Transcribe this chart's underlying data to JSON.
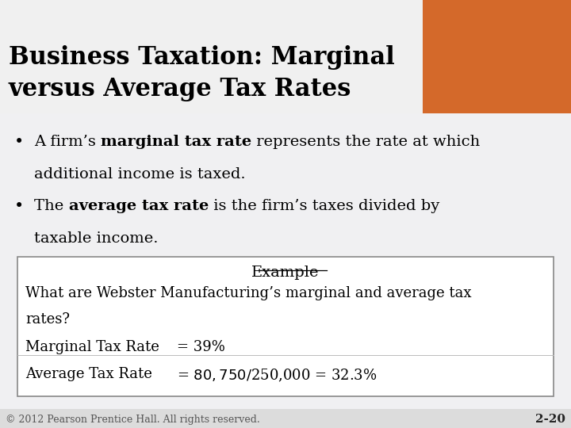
{
  "title_line1": "Business Taxation: Marginal",
  "title_line2": "versus Average Tax Rates",
  "header_bg": "#D4692A",
  "header_text_color": "#000000",
  "slide_bg": "#DCDCDC",
  "body_bg": "#F0F0F2",
  "bullet1_normal": "A firm’s ",
  "bullet1_bold": "marginal tax rate",
  "bullet1_rest": " represents the rate at which",
  "bullet1_line2": "additional income is taxed.",
  "bullet2_normal": "The ",
  "bullet2_bold": "average tax rate",
  "bullet2_rest": " is the firm’s taxes divided by",
  "bullet2_line2": "taxable income.",
  "example_title": "Example",
  "q_line1": "What are Webster Manufacturing’s marginal and average tax",
  "q_line2": "rates?",
  "marginal_label": "Marginal Tax Rate",
  "marginal_value": "= 39%",
  "average_label": "Average Tax Rate",
  "average_value": "= $80,750/$250,000 = 32.3%",
  "footer_left": "© 2012 Pearson Prentice Hall. All rights reserved.",
  "footer_right": "2-20",
  "box_border": "#888888",
  "box_bg": "#FFFFFF",
  "title_font_size": 22,
  "body_font_size": 14,
  "example_font_size": 13,
  "footer_font_size": 9
}
